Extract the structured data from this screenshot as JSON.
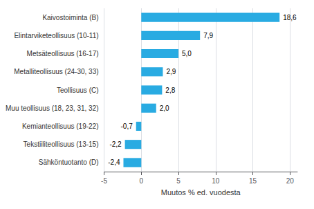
{
  "chart_data": {
    "type": "bar",
    "orientation": "horizontal",
    "categories": [
      "Sähköntuotanto (D)",
      "Tekstiiliteollisuus (13-15)",
      "Kemianteollisuus (19-22)",
      "Muu teollisuus (18, 23, 31, 32)",
      "Teollisuus (C)",
      "Metalliteollisuus (24-30, 33)",
      "Metsäteollisuus (16-17)",
      "Elintarviketeollisuus (10-11)",
      "Kaivostoiminta (B)"
    ],
    "values": [
      -2.4,
      -2.2,
      -0.7,
      2.0,
      2.8,
      2.9,
      5.0,
      7.9,
      18.6
    ],
    "value_labels": [
      "-2,4",
      "-2,2",
      "-0,7",
      "2,0",
      "2,8",
      "2,9",
      "5,0",
      "7,9",
      "18,6"
    ],
    "data_labels": true,
    "color": "#29abe2",
    "xlabel": "Muutos % ed. vuodesta",
    "xlim": [
      -5,
      21
    ],
    "xticks": [
      -5,
      0,
      5,
      10,
      15,
      20
    ],
    "grid": true
  }
}
